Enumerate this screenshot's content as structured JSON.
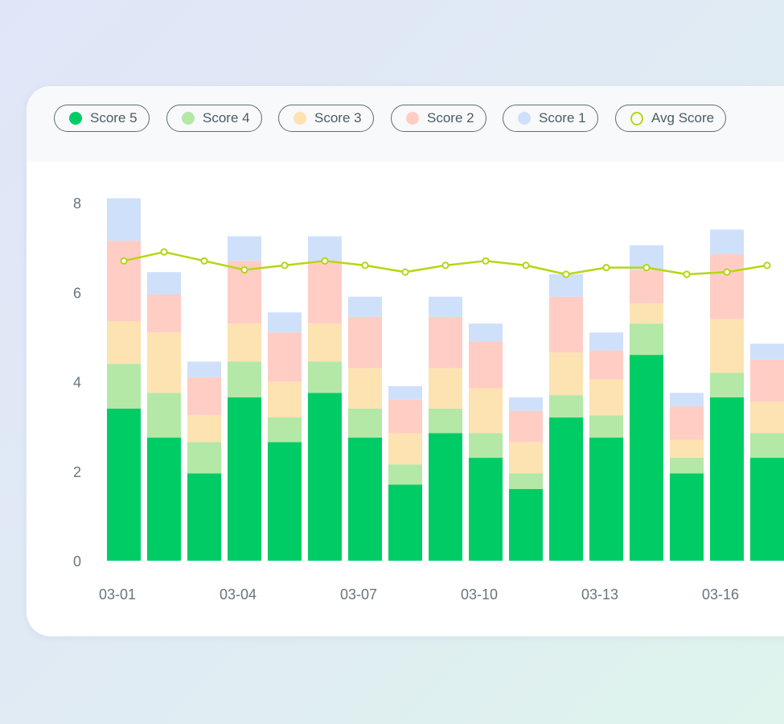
{
  "legend": [
    {
      "label": "Score 5",
      "color": "#00cc66",
      "kind": "dot"
    },
    {
      "label": "Score 4",
      "color": "#b3e8a6",
      "kind": "dot"
    },
    {
      "label": "Score 3",
      "color": "#fde3b2",
      "kind": "dot"
    },
    {
      "label": "Score 2",
      "color": "#ffcdc4",
      "kind": "dot"
    },
    {
      "label": "Score 1",
      "color": "#cfe0fb",
      "kind": "dot"
    },
    {
      "label": "Avg Score",
      "color": "#b7d613",
      "kind": "ring"
    }
  ],
  "chart_data": {
    "type": "bar",
    "stacked": true,
    "categories": [
      "03-01",
      "03-02",
      "03-03",
      "03-04",
      "03-05",
      "03-06",
      "03-07",
      "03-08",
      "03-09",
      "03-10",
      "03-11",
      "03-12",
      "03-13",
      "03-14",
      "03-15",
      "03-16",
      "03-17"
    ],
    "x_tick_labels": [
      "03-01",
      "03-04",
      "03-07",
      "03-10",
      "03-13",
      "03-16"
    ],
    "series": [
      {
        "name": "Score 5",
        "color": "#00cc66",
        "values": [
          3.4,
          2.75,
          1.95,
          3.65,
          2.65,
          3.75,
          2.75,
          1.7,
          2.85,
          2.3,
          1.6,
          3.2,
          2.75,
          4.6,
          1.95,
          3.65,
          2.3
        ]
      },
      {
        "name": "Score 4",
        "color": "#b3e8a6",
        "values": [
          1.0,
          1.0,
          0.7,
          0.8,
          0.55,
          0.7,
          0.65,
          0.45,
          0.55,
          0.55,
          0.35,
          0.5,
          0.5,
          0.7,
          0.35,
          0.55,
          0.55
        ]
      },
      {
        "name": "Score 3",
        "color": "#fde3b2",
        "values": [
          0.95,
          1.35,
          0.6,
          0.85,
          0.8,
          0.85,
          0.9,
          0.7,
          0.9,
          1.0,
          0.7,
          0.95,
          0.8,
          0.45,
          0.4,
          1.2,
          0.7
        ]
      },
      {
        "name": "Score 2",
        "color": "#ffcdc4",
        "values": [
          1.8,
          0.85,
          0.85,
          1.4,
          1.1,
          1.4,
          1.15,
          0.75,
          1.15,
          1.05,
          0.7,
          1.25,
          0.65,
          0.75,
          0.75,
          1.45,
          0.95
        ]
      },
      {
        "name": "Score 1",
        "color": "#cfe0fb",
        "values": [
          0.95,
          0.5,
          0.35,
          0.55,
          0.45,
          0.55,
          0.45,
          0.3,
          0.45,
          0.4,
          0.3,
          0.5,
          0.4,
          0.55,
          0.3,
          0.55,
          0.35
        ]
      }
    ],
    "line": {
      "name": "Avg Score",
      "color": "#b7d613",
      "values": [
        6.7,
        6.9,
        6.7,
        6.5,
        6.6,
        6.7,
        6.6,
        6.45,
        6.6,
        6.7,
        6.6,
        6.4,
        6.55,
        6.55,
        6.4,
        6.45,
        6.6
      ]
    },
    "ylim": [
      0,
      8
    ],
    "yticks": [
      0,
      2,
      4,
      6,
      8
    ],
    "grid": false,
    "legend_position": "top-left"
  }
}
